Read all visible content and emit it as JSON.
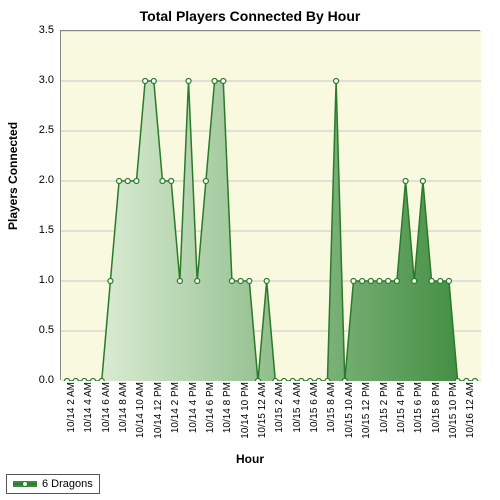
{
  "chart": {
    "type": "area",
    "title": "Total Players Connected By Hour",
    "title_fontsize": 14,
    "xlabel": "Hour",
    "ylabel": "Players Connected",
    "label_fontsize": 12,
    "background_color": "#f9f9df",
    "grid_color": "#c8c8c8",
    "border_color": "#888888",
    "ylim": [
      0,
      3.5
    ],
    "ytick_step": 0.5,
    "yticks": [
      "0.0",
      "0.5",
      "1.0",
      "1.5",
      "2.0",
      "2.5",
      "3.0",
      "3.5"
    ],
    "xtick_rotation": -90,
    "tick_fontsize": 10,
    "series": {
      "name": "6 Dragons",
      "line_color": "#2a7a2a",
      "line_width": 1.5,
      "fill_gradient_from": "#e8f4e0",
      "fill_gradient_to": "#3d8b3d",
      "marker": "circle",
      "marker_size": 5,
      "marker_fill": "#ffffff",
      "marker_stroke": "#2a7a2a"
    },
    "categories": [
      "10/14 2 AM",
      "10/14 4 AM",
      "10/14 6 AM",
      "10/14 8 AM",
      "10/14 10 AM",
      "10/14 12 PM",
      "10/14 2 PM",
      "10/14 4 PM",
      "10/14 6 PM",
      "10/14 8 PM",
      "10/14 10 PM",
      "10/15 12 AM",
      "10/15 2 AM",
      "10/15 4 AM",
      "10/15 6 AM",
      "10/15 8 AM",
      "10/15 10 AM",
      "10/15 12 PM",
      "10/15 2 PM",
      "10/15 4 PM",
      "10/15 6 PM",
      "10/15 8 PM",
      "10/15 10 PM",
      "10/16 12 AM"
    ],
    "values": [
      0,
      0,
      0,
      0,
      0,
      1,
      2,
      2,
      2,
      3,
      3,
      2,
      2,
      1,
      3,
      1,
      2,
      3,
      3,
      1,
      1,
      1,
      0,
      1,
      0,
      0,
      0,
      0,
      0,
      0,
      0,
      3,
      0,
      1,
      1,
      1,
      1,
      1,
      1,
      2,
      1,
      2,
      1,
      1,
      1,
      0,
      0,
      0
    ]
  }
}
